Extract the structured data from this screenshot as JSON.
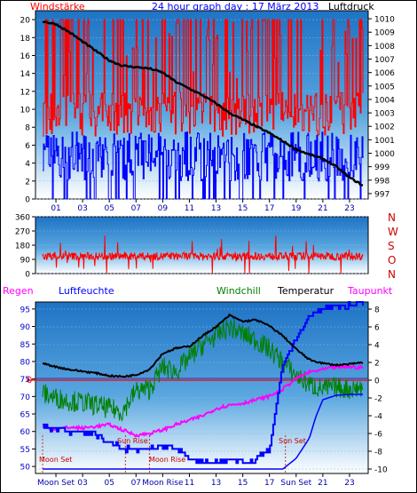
{
  "header": {
    "left_label": "Windstärke",
    "title": "24 hour graph day : 17 März 2013",
    "right_label": "Luftdruck"
  },
  "bottom_header": {
    "regen": "Regen",
    "luftfeuchte": "Luftfeuchte",
    "windchill": "Windchill",
    "temperatur": "Temperatur",
    "taupunkt": "Taupunkt"
  },
  "colors": {
    "wind_gust": "#ff0000",
    "wind_avg": "#0000ff",
    "pressure": "#000000",
    "direction": "#ff0000",
    "humidity": "#0000ff",
    "temperature": "#000000",
    "windchill": "#008000",
    "dewpoint": "#ff00ff",
    "rain": "#0000ff",
    "reference_line": "#ff0000",
    "header_left": "#ff0000",
    "header_title": "#0000ff",
    "compass": "#cc0000",
    "event_labels": "#cc0000",
    "panel_top": "#1e73c4",
    "panel_bottom": "#ffffff"
  },
  "chart_data": [
    {
      "type": "line",
      "name_left": "Windstärke",
      "name_right": "Luftdruck",
      "x_ticks": [
        "01",
        "03",
        "05",
        "07",
        "09",
        "11",
        "13",
        "15",
        "17",
        "19",
        "21",
        "23"
      ],
      "y_left_ticks": [
        0,
        2,
        4,
        6,
        8,
        10,
        12,
        14,
        16,
        18,
        20
      ],
      "y_left_range": [
        0,
        21
      ],
      "y_right_ticks": [
        997,
        998,
        999,
        1000,
        1001,
        1002,
        1003,
        1004,
        1005,
        1006,
        1007,
        1008,
        1009,
        1010
      ],
      "y_right_range": [
        996.6,
        1010.6
      ],
      "pressure": {
        "x": [
          0,
          1,
          2,
          3,
          4,
          5,
          6,
          7,
          8,
          9,
          10,
          11,
          12,
          13,
          14,
          15,
          16,
          17,
          18,
          19,
          20,
          21,
          22,
          23,
          24
        ],
        "y": [
          1009.8,
          1009.6,
          1009.0,
          1008.3,
          1007.6,
          1006.9,
          1006.5,
          1006.4,
          1006.3,
          1006.0,
          1005.3,
          1004.8,
          1004.3,
          1003.7,
          1003.0,
          1002.5,
          1002.0,
          1001.5,
          1000.9,
          1000.3,
          999.9,
          999.6,
          999.0,
          998.2,
          997.6
        ]
      },
      "wind_avg_range": [
        0,
        9
      ],
      "wind_gust_range": [
        4,
        20
      ]
    },
    {
      "type": "line",
      "name": "Windrichtung",
      "y_ticks": [
        0,
        90,
        180,
        270,
        360
      ],
      "y_range": [
        0,
        360
      ],
      "compass_labels": [
        "N",
        "W",
        "S",
        "O",
        "N"
      ],
      "typical_direction": 110
    },
    {
      "type": "line",
      "y_left_ticks": [
        50,
        55,
        60,
        65,
        70,
        75,
        80,
        85,
        90,
        95
      ],
      "y_left_range": [
        48,
        97
      ],
      "y_right_ticks": [
        -10,
        -8,
        -6,
        -4,
        -2,
        0,
        2,
        4,
        6,
        8
      ],
      "y_right_range": [
        -10.5,
        8.8
      ],
      "zero_label": "0",
      "temperature": {
        "x": [
          0,
          1,
          2,
          3,
          4,
          5,
          6,
          7,
          8,
          9,
          10,
          11,
          12,
          13,
          14,
          15,
          16,
          17,
          18,
          19,
          20,
          21,
          22,
          23,
          24
        ],
        "y": [
          1.9,
          1.5,
          1.2,
          1.0,
          0.8,
          0.5,
          0.4,
          0.6,
          1.2,
          3.0,
          3.6,
          3.8,
          5.0,
          6.0,
          7.3,
          6.6,
          6.8,
          6.1,
          5.0,
          3.5,
          2.3,
          1.9,
          1.7,
          1.8,
          2.0
        ]
      },
      "windchill": {
        "x": [
          0,
          1,
          2,
          3,
          4,
          5,
          6,
          7,
          8,
          9,
          10,
          11,
          12,
          13,
          14,
          15,
          16,
          17,
          18,
          19,
          20,
          21,
          22,
          23,
          24
        ],
        "y": [
          -1.5,
          -2.0,
          -2.3,
          -2.5,
          -2.8,
          -3.2,
          -3.5,
          -1.2,
          -1.0,
          1.5,
          1.0,
          2.5,
          4.0,
          5.0,
          6.0,
          5.2,
          4.5,
          3.5,
          2.0,
          0.5,
          -0.5,
          -1.0,
          -0.8,
          -1.0,
          -0.8
        ]
      },
      "dewpoint": {
        "x": [
          0,
          1,
          2,
          3,
          4,
          5,
          6,
          7,
          8,
          9,
          10,
          11,
          12,
          13,
          14,
          15,
          16,
          17,
          18,
          19,
          20,
          21,
          22,
          23,
          24
        ],
        "y": [
          -5.3,
          -5.5,
          -5.3,
          -5.4,
          -5.2,
          -5.0,
          -5.6,
          -6.2,
          -6.0,
          -5.6,
          -5.0,
          -4.5,
          -4.0,
          -3.2,
          -2.8,
          -2.6,
          -2.2,
          -1.8,
          -1.0,
          0.2,
          0.9,
          1.2,
          1.5,
          1.5,
          1.4
        ]
      },
      "humidity": {
        "x": [
          0,
          1,
          2,
          3,
          4,
          5,
          6,
          7,
          8,
          9,
          10,
          11,
          12,
          13,
          14,
          15,
          16,
          17,
          18,
          19,
          20,
          21,
          22,
          23,
          24
        ],
        "y": [
          61,
          61,
          60,
          60,
          59,
          57,
          55,
          55,
          55,
          56,
          55,
          52,
          51,
          52,
          52,
          51,
          52,
          55,
          79,
          87,
          93,
          95,
          96,
          96,
          96
        ]
      },
      "rain": {
        "x": [
          0,
          18,
          19,
          20,
          20.5,
          21,
          22,
          23,
          24
        ],
        "y": [
          0,
          0,
          1.2,
          3.5,
          6.0,
          7.8,
          8.3,
          8.4,
          8.4
        ]
      },
      "events": [
        {
          "label": "Moon Set",
          "hour": 0
        },
        {
          "label": "Sun Rise",
          "hour": 6.2
        },
        {
          "label": "Moon Rise",
          "hour": 8.0
        },
        {
          "label": "Sun Set",
          "hour": 18.2
        }
      ],
      "x_tick_labels": [
        "Moon Set",
        "03",
        "05",
        "07",
        "Moon Rise",
        "11",
        "13",
        "15",
        "17",
        "Sun Set",
        "21",
        "23"
      ]
    }
  ]
}
